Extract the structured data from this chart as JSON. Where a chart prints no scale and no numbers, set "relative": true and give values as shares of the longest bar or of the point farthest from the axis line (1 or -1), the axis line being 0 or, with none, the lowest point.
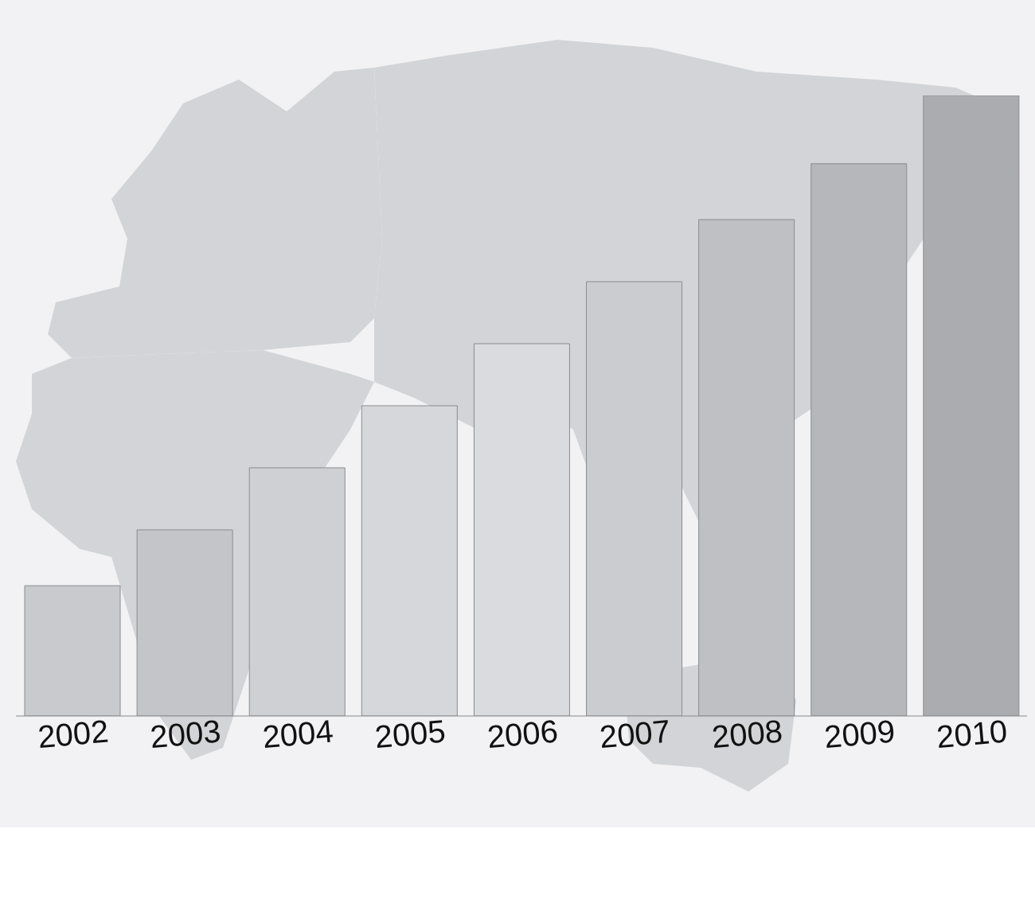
{
  "chart_data": {
    "type": "bar",
    "relative": true,
    "categories": [
      "2002",
      "2003",
      "2004",
      "2005",
      "2006",
      "2007",
      "2008",
      "2009",
      "2010"
    ],
    "values": [
      0.21,
      0.3,
      0.4,
      0.5,
      0.6,
      0.7,
      0.8,
      0.89,
      1
    ],
    "colors": [
      "#c9cacd",
      "#c4c5c9",
      "#cfd0d3",
      "#d6d7da",
      "#dadbde",
      "#cbccd0",
      "#bfc0c4",
      "#b6b7bb",
      "#abacb0"
    ]
  }
}
